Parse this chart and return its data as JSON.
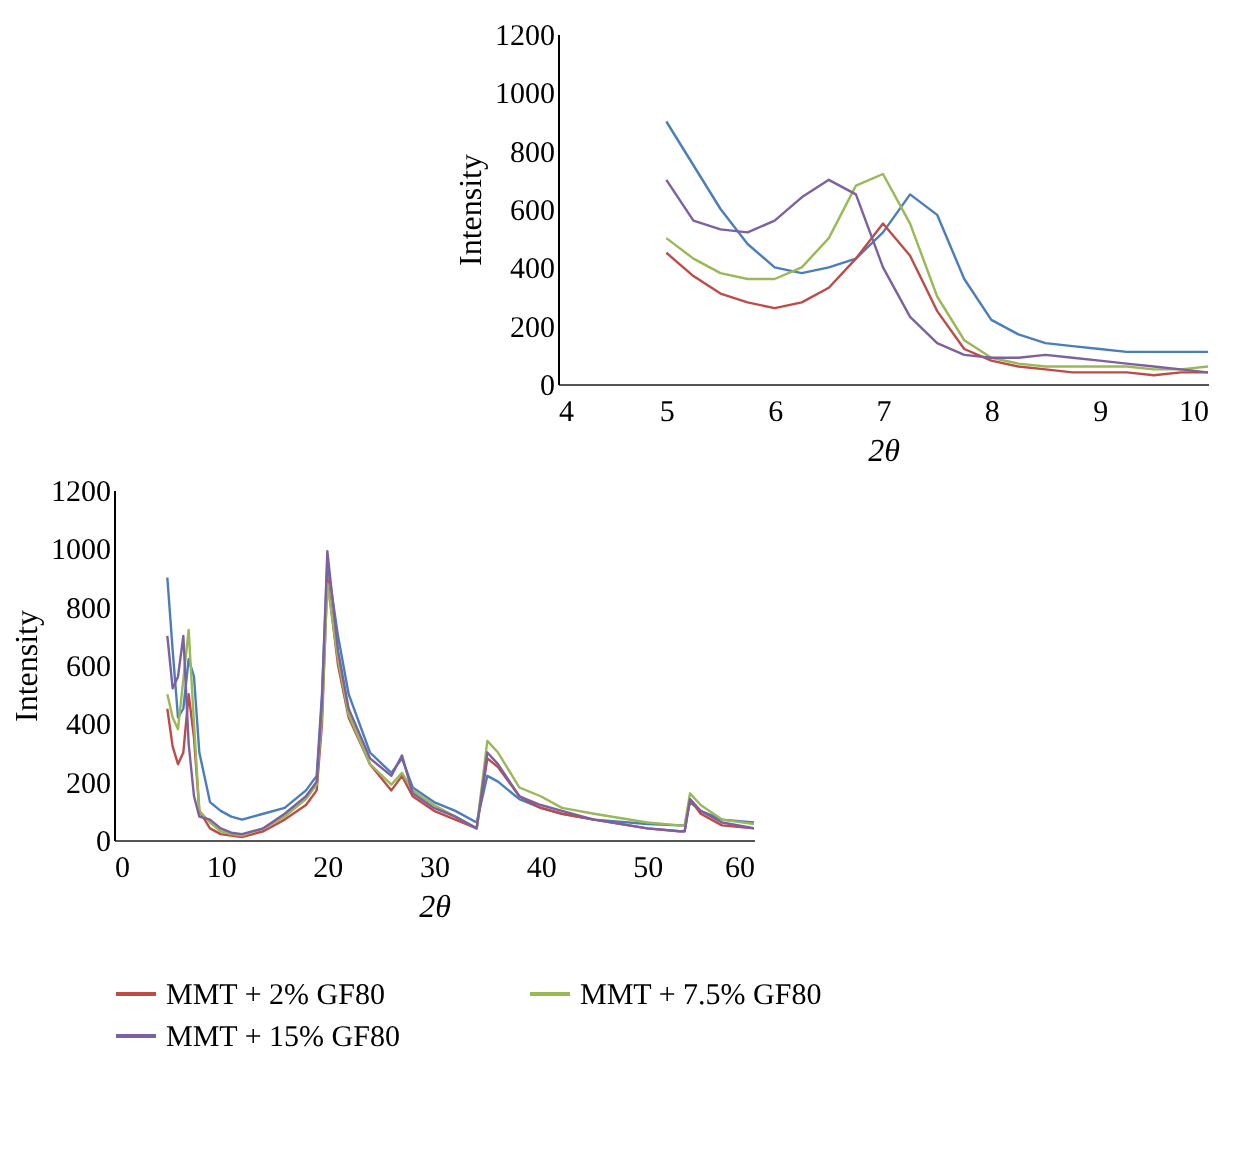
{
  "chart_data": [
    {
      "type": "line",
      "xlabel": "2θ",
      "ylabel": "Intensity",
      "xlim": [
        4,
        10
      ],
      "ylim": [
        0,
        1200
      ],
      "xticks": [
        4,
        5,
        6,
        7,
        8,
        9,
        10
      ],
      "yticks": [
        0,
        200,
        400,
        600,
        800,
        1000,
        1200
      ],
      "grid": false,
      "legend": false,
      "x": [
        5,
        5.25,
        5.5,
        5.75,
        6,
        6.25,
        6.5,
        6.75,
        7,
        7.25,
        7.5,
        7.75,
        8,
        8.25,
        8.5,
        8.75,
        9,
        9.25,
        9.5,
        9.75,
        10
      ],
      "series": [
        {
          "color": "#4a7ebb",
          "values": [
            900,
            750,
            600,
            480,
            400,
            380,
            400,
            430,
            520,
            650,
            580,
            360,
            220,
            170,
            140,
            130,
            120,
            110,
            110,
            110,
            110
          ]
        },
        {
          "color": "#be4b48",
          "values": [
            450,
            370,
            310,
            280,
            260,
            280,
            330,
            430,
            550,
            440,
            250,
            120,
            80,
            60,
            50,
            40,
            40,
            40,
            30,
            40,
            40
          ]
        },
        {
          "color": "#98b954",
          "values": [
            500,
            430,
            380,
            360,
            360,
            400,
            500,
            680,
            720,
            550,
            300,
            150,
            90,
            70,
            60,
            60,
            60,
            60,
            50,
            50,
            60
          ]
        },
        {
          "color": "#7d60a0",
          "values": [
            700,
            560,
            530,
            520,
            560,
            640,
            700,
            650,
            400,
            230,
            140,
            100,
            90,
            90,
            100,
            90,
            80,
            70,
            60,
            50,
            40
          ]
        }
      ]
    },
    {
      "type": "line",
      "xlabel": "2θ",
      "ylabel": "Intensity",
      "xlim": [
        0,
        60
      ],
      "ylim": [
        0,
        1200
      ],
      "xticks": [
        0,
        10,
        20,
        30,
        40,
        50,
        60
      ],
      "yticks": [
        0,
        200,
        400,
        600,
        800,
        1000,
        1200
      ],
      "grid": false,
      "legend": "bottom",
      "x": [
        5,
        5.5,
        6,
        6.5,
        7,
        7.5,
        8,
        9,
        10,
        11,
        12,
        14,
        16,
        18,
        19,
        19.5,
        20,
        21,
        22,
        24,
        26,
        27,
        28,
        30,
        32,
        34,
        35,
        36,
        38,
        40,
        42,
        45,
        50,
        53,
        53.5,
        54,
        55,
        57,
        60
      ],
      "series": [
        {
          "color": "#4a7ebb",
          "values": [
            900,
            650,
            420,
            450,
            620,
            560,
            300,
            130,
            100,
            80,
            70,
            90,
            110,
            170,
            220,
            500,
            950,
            700,
            500,
            300,
            230,
            280,
            180,
            130,
            100,
            60,
            220,
            200,
            140,
            110,
            90,
            70,
            55,
            50,
            50,
            130,
            100,
            70,
            60
          ]
        },
        {
          "name": "MMT + 2% GF80",
          "color": "#be4b48",
          "values": [
            450,
            320,
            260,
            300,
            500,
            350,
            100,
            40,
            20,
            15,
            10,
            30,
            70,
            120,
            170,
            400,
            900,
            600,
            420,
            260,
            170,
            220,
            150,
            100,
            70,
            40,
            280,
            250,
            150,
            110,
            90,
            70,
            40,
            30,
            30,
            140,
            90,
            50,
            40
          ]
        },
        {
          "name": "MMT + 7.5% GF80",
          "color": "#98b954",
          "values": [
            500,
            420,
            380,
            550,
            720,
            400,
            100,
            60,
            30,
            20,
            15,
            40,
            80,
            140,
            190,
            430,
            880,
            620,
            430,
            260,
            190,
            230,
            170,
            120,
            80,
            40,
            340,
            300,
            180,
            150,
            110,
            90,
            60,
            50,
            50,
            160,
            120,
            70,
            55
          ]
        },
        {
          "name": "MMT + 15% GF80",
          "color": "#7d60a0",
          "values": [
            700,
            520,
            560,
            700,
            330,
            150,
            80,
            70,
            40,
            25,
            20,
            40,
            90,
            150,
            200,
            480,
            990,
            650,
            450,
            280,
            220,
            290,
            160,
            110,
            80,
            40,
            300,
            260,
            150,
            120,
            100,
            70,
            40,
            30,
            30,
            140,
            100,
            60,
            40
          ]
        }
      ]
    }
  ]
}
